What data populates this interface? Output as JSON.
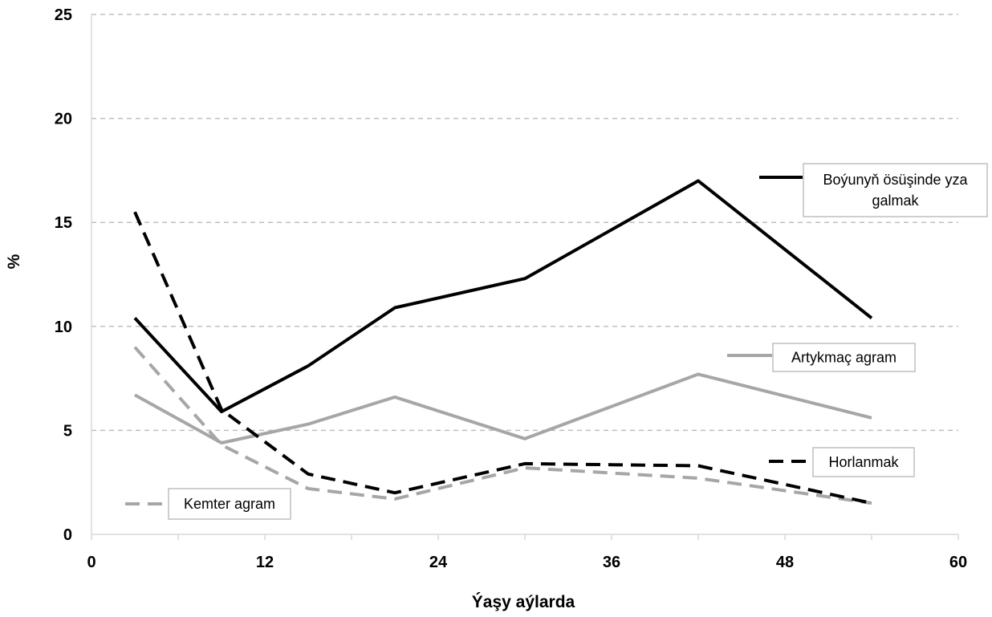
{
  "chart_data": {
    "type": "line",
    "xlabel": "Ýaşy aýlarda",
    "ylabel": "%",
    "xlim": [
      0,
      60
    ],
    "ylim": [
      0,
      25
    ],
    "x_ticks": [
      0,
      12,
      24,
      36,
      48,
      60
    ],
    "y_ticks": [
      0,
      5,
      10,
      15,
      20,
      25
    ],
    "x_tick_labels": [
      "0",
      "12",
      "24",
      "36",
      "48",
      "60"
    ],
    "y_tick_labels": [
      "0",
      "5",
      "10",
      "15",
      "20",
      "25"
    ],
    "grid": "horizontal dashed",
    "legend": "inline labels next to series",
    "series": [
      {
        "name": "Boýunyň ösüşinde yza galmak",
        "name_lines": [
          "Boýunyň ösüşinde yza",
          "galmak"
        ],
        "color": "#000000",
        "style": "solid",
        "x": [
          3,
          9,
          15,
          21,
          30,
          42,
          54
        ],
        "y": [
          10.4,
          5.9,
          8.1,
          10.9,
          12.3,
          17.0,
          10.4
        ]
      },
      {
        "name": "Artykmaç agram",
        "name_lines": [
          "Artykmaç agram"
        ],
        "color": "#a6a6a6",
        "style": "solid",
        "x": [
          3,
          9,
          15,
          21,
          30,
          42,
          54
        ],
        "y": [
          6.7,
          4.4,
          5.3,
          6.6,
          4.6,
          7.7,
          5.6
        ]
      },
      {
        "name": "Horlanmak",
        "name_lines": [
          "Horlanmak"
        ],
        "color": "#000000",
        "style": "dashed",
        "x": [
          3,
          9,
          15,
          21,
          30,
          42,
          54
        ],
        "y": [
          15.5,
          6.0,
          2.9,
          2.0,
          3.4,
          3.3,
          1.5
        ]
      },
      {
        "name": "Kemter agram",
        "name_lines": [
          "Kemter agram"
        ],
        "color": "#a6a6a6",
        "style": "dashed",
        "x": [
          3,
          9,
          15,
          21,
          30,
          42,
          54
        ],
        "y": [
          9.0,
          4.3,
          2.2,
          1.7,
          3.2,
          2.7,
          1.5
        ]
      }
    ]
  }
}
